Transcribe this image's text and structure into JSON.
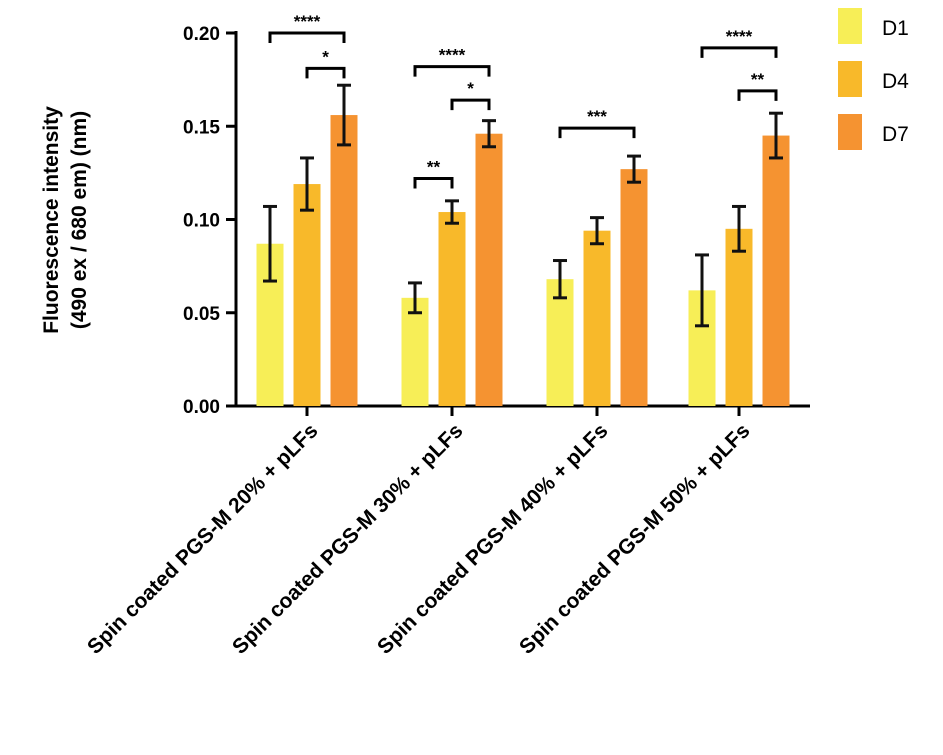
{
  "chart_data": {
    "type": "bar",
    "ylabel_lines": [
      "Fluorescence intensity",
      "(490 ex / 680 em) (nm)"
    ],
    "ylim": [
      0,
      0.2
    ],
    "yticks": [
      "0.00",
      "0.05",
      "0.10",
      "0.15",
      "0.20"
    ],
    "categories": [
      "Spin coated PGS-M 20% + pLFs",
      "Spin coated PGS-M 30% + pLFs",
      "Spin coated PGS-M 40% + pLFs",
      "Spin coated PGS-M 50% + pLFs"
    ],
    "series": [
      {
        "name": "D1",
        "color": "#f7ee57",
        "values": [
          0.087,
          0.058,
          0.068,
          0.062
        ],
        "errors": [
          0.02,
          0.008,
          0.01,
          0.019
        ]
      },
      {
        "name": "D4",
        "color": "#f8b92a",
        "values": [
          0.119,
          0.104,
          0.094,
          0.095
        ],
        "errors": [
          0.014,
          0.006,
          0.007,
          0.012
        ]
      },
      {
        "name": "D7",
        "color": "#f59331",
        "values": [
          0.156,
          0.146,
          0.127,
          0.145
        ],
        "errors": [
          0.016,
          0.007,
          0.007,
          0.012
        ]
      }
    ],
    "significance": [
      {
        "group": 0,
        "from": 0,
        "to": 2,
        "label": "****",
        "level": 0.2
      },
      {
        "group": 0,
        "from": 1,
        "to": 2,
        "label": "*",
        "level": 0.181
      },
      {
        "group": 1,
        "from": 0,
        "to": 2,
        "label": "****",
        "level": 0.182
      },
      {
        "group": 1,
        "from": 1,
        "to": 2,
        "label": "*",
        "level": 0.164
      },
      {
        "group": 1,
        "from": 0,
        "to": 1,
        "label": "**",
        "level": 0.122
      },
      {
        "group": 2,
        "from": 0,
        "to": 2,
        "label": "***",
        "level": 0.149
      },
      {
        "group": 3,
        "from": 0,
        "to": 2,
        "label": "****",
        "level": 0.192
      },
      {
        "group": 3,
        "from": 1,
        "to": 2,
        "label": "**",
        "level": 0.169
      }
    ],
    "legend_position": "top-right"
  }
}
